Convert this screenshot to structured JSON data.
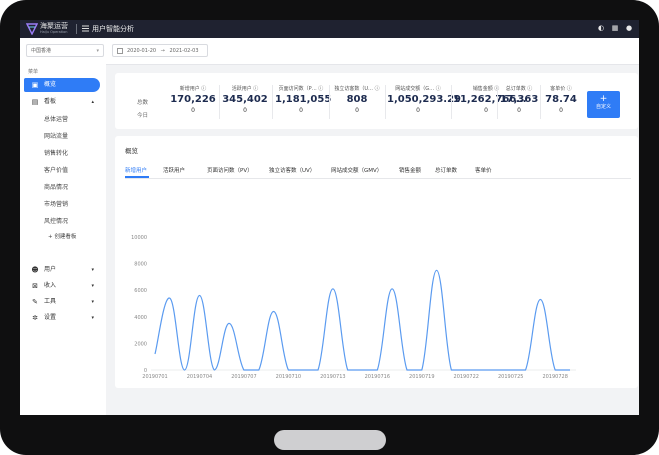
{
  "app": {
    "brand_name": "海聚运营",
    "brand_sub": "HaiJu Operation",
    "title": "用户智能分析"
  },
  "filters": {
    "region": "中国香港",
    "date_start": "2020-01-20",
    "date_sep": "→",
    "date_end": "2021-02-03"
  },
  "sidebar": {
    "section": "菜单",
    "items": [
      {
        "label": "概览",
        "icon": "overview-icon"
      },
      {
        "label": "看板",
        "icon": "dashboard-icon"
      },
      {
        "label": "用户",
        "icon": "user-icon"
      },
      {
        "label": "收入",
        "icon": "income-icon"
      },
      {
        "label": "工具",
        "icon": "tools-icon"
      },
      {
        "label": "设置",
        "icon": "settings-icon"
      }
    ],
    "sub_items": [
      "总体运营",
      "网站流量",
      "销售转化",
      "客户价值",
      "商品情况",
      "市场营销",
      "风控情况"
    ],
    "create": "创建看板"
  },
  "stats": {
    "row_total": "总数",
    "row_today": "今日",
    "items": [
      {
        "label": "新增用户",
        "total": "170,226",
        "today": "0"
      },
      {
        "label": "活跃用户",
        "total": "345,402",
        "today": "0"
      },
      {
        "label": "页面访问数（P…",
        "total": "1,181,055",
        "today": "0"
      },
      {
        "label": "独立访客数（U…",
        "total": "808",
        "today": "0"
      },
      {
        "label": "网站成交额（G…",
        "total": "1,050,293.29",
        "today": "0"
      },
      {
        "label": "销售金额",
        "total": "11,262,766…",
        "today": "0"
      },
      {
        "label": "总订单数",
        "total": "17,363",
        "today": "0"
      },
      {
        "label": "客单价",
        "total": "78.74",
        "today": "0"
      }
    ],
    "custom_button": "自定义"
  },
  "chart_section": {
    "title": "概览",
    "tabs": [
      "新增用户",
      "活跃用户",
      "页面访问数（PV）",
      "独立访客数（UV）",
      "网站成交额（GMV）",
      "销售金额",
      "总订单数",
      "客单价"
    ]
  },
  "chart_data": {
    "type": "line",
    "series_color": "#5b9bf0",
    "ylim": [
      0,
      10000
    ],
    "yticks": [
      "0",
      "2000",
      "4000",
      "6000",
      "8000",
      "10000"
    ],
    "xticks": [
      "20190701",
      "20190704",
      "20190707",
      "20190710",
      "20190713",
      "20190716",
      "20190719",
      "20190722",
      "20190725",
      "20190728"
    ],
    "x": [
      "20190701",
      "20190702",
      "20190703",
      "20190704",
      "20190705",
      "20190706",
      "20190707",
      "20190708",
      "20190709",
      "20190710",
      "20190711",
      "20190712",
      "20190713",
      "20190714",
      "20190715",
      "20190716",
      "20190717",
      "20190718",
      "20190719",
      "20190720",
      "20190721",
      "20190722",
      "20190723",
      "20190724",
      "20190725",
      "20190726",
      "20190727",
      "20190728",
      "20190729"
    ],
    "values": [
      1200,
      5400,
      0,
      5600,
      0,
      3500,
      0,
      0,
      4400,
      0,
      0,
      0,
      6100,
      0,
      0,
      0,
      6100,
      0,
      0,
      7500,
      0,
      0,
      0,
      0,
      0,
      0,
      5300,
      0,
      0
    ]
  }
}
